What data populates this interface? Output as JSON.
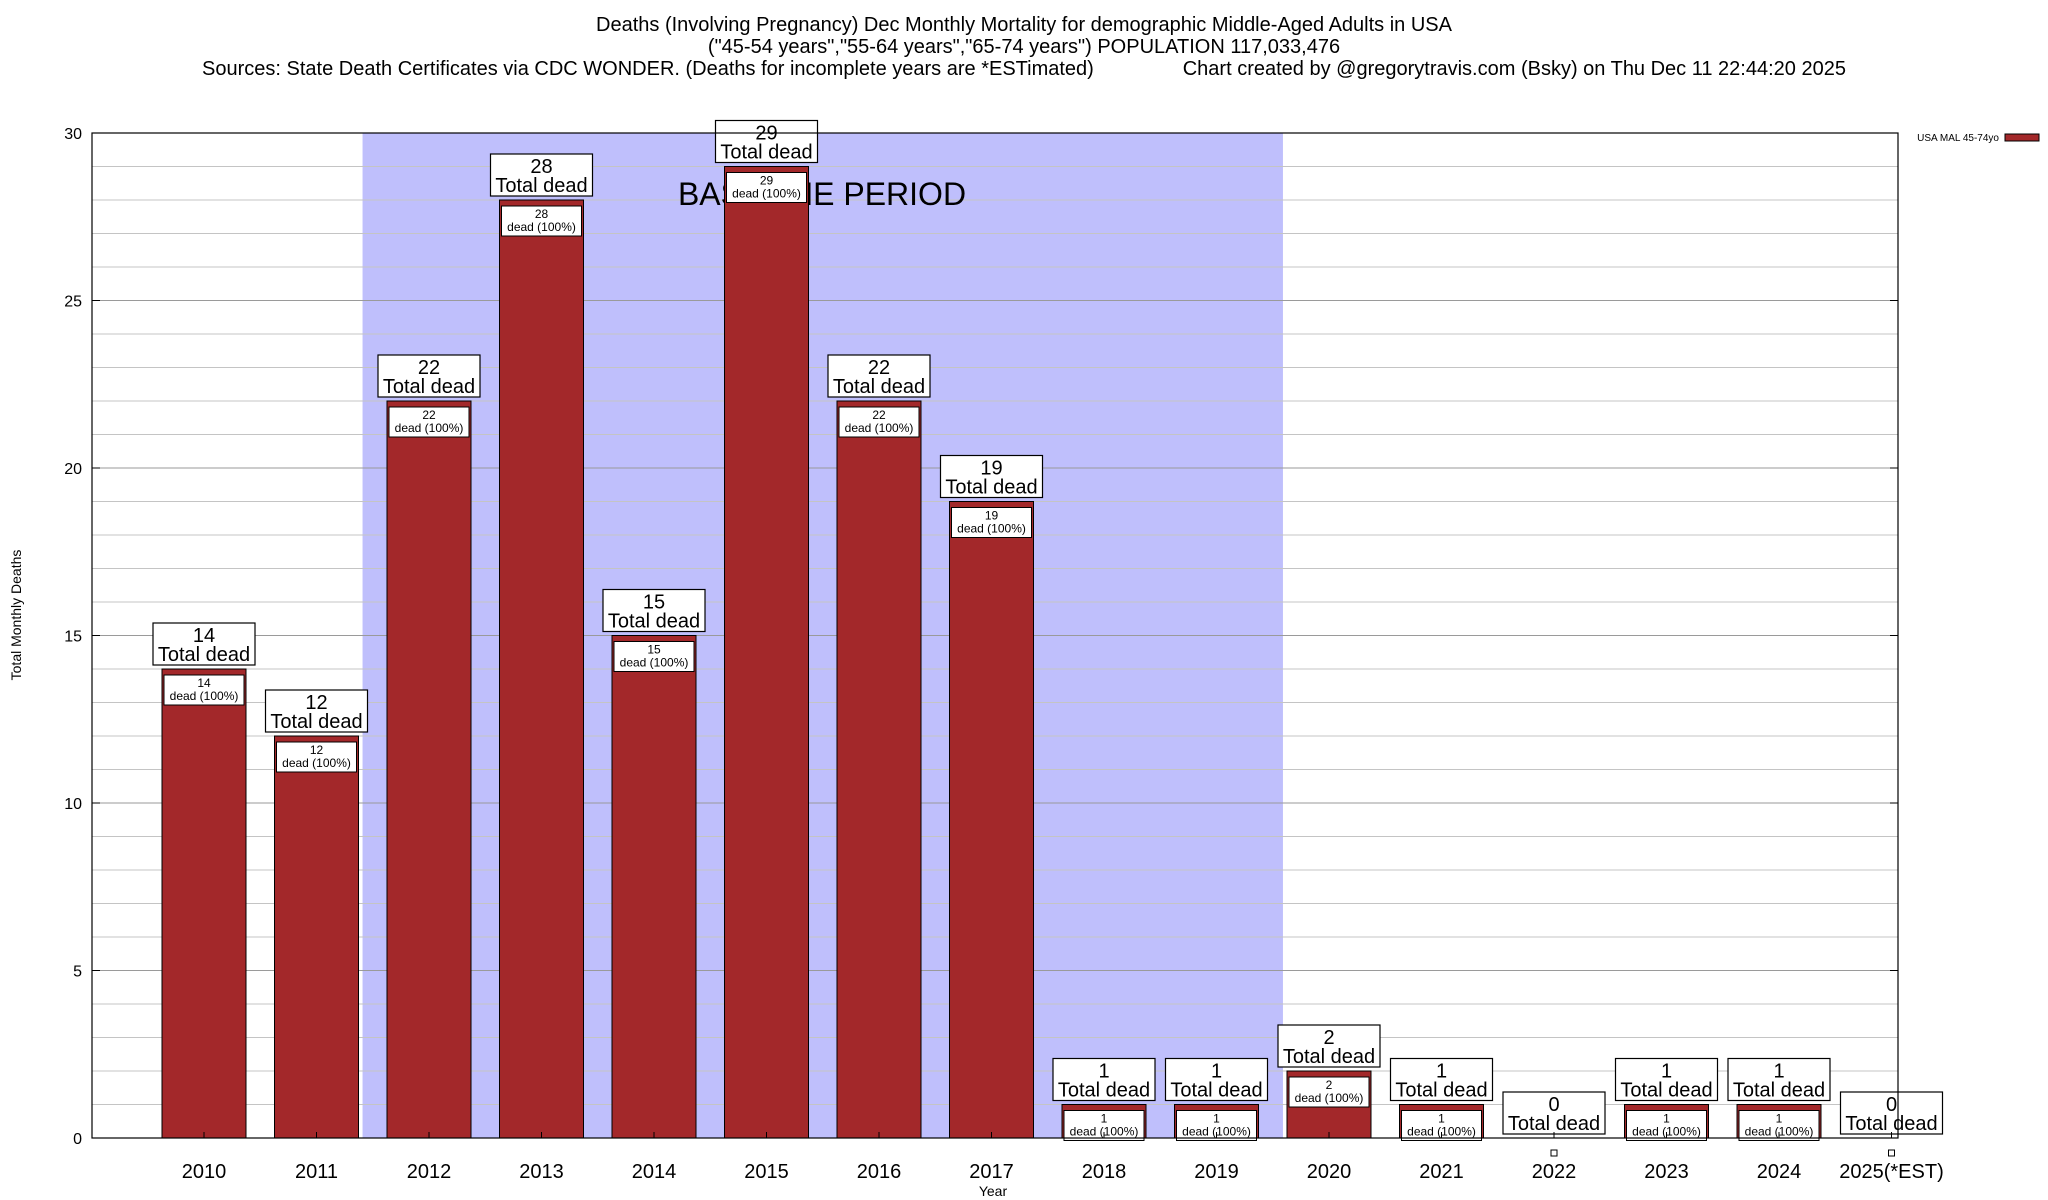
{
  "chart_data": {
    "type": "bar",
    "title": "Deaths (Involving Pregnancy) Dec Monthly Mortality for demographic Middle-Aged Adults in USA",
    "subtitle": "(\"45-54 years\",\"55-64 years\",\"65-74 years\") POPULATION 117,033,476",
    "sources_line": "Sources: State Death Certificates via CDC WONDER. (Deaths for incomplete years are *ESTimated)",
    "credit_line": "Chart created by @gregorytravis.com (Bsky) on Thu Dec 11 22:44:20 2025",
    "xlabel": "Year",
    "ylabel": "Total Monthly Deaths",
    "ylim": [
      0,
      30
    ],
    "yticks": [
      0,
      5,
      10,
      15,
      20,
      25,
      30
    ],
    "grid": true,
    "minor_grid_step": 1,
    "legend": {
      "placement": "top-right",
      "entries": [
        "USA MAL 45-74yo"
      ]
    },
    "series_color": "#a3282a",
    "baseline_color": "#bfbffc",
    "baseline_label": "BASELINE PERIOD",
    "baseline_range": [
      "2012",
      "2019"
    ],
    "total_label_suffix": "Total dead",
    "inner_label_suffix": "dead (100%)",
    "categories": [
      "2010",
      "2011",
      "2012",
      "2013",
      "2014",
      "2015",
      "2016",
      "2017",
      "2018",
      "2019",
      "2020",
      "2021",
      "2022",
      "2023",
      "2024",
      "2025(*EST)"
    ],
    "values": [
      14,
      12,
      22,
      28,
      15,
      29,
      22,
      19,
      1,
      1,
      2,
      1,
      0,
      1,
      1,
      0
    ]
  }
}
